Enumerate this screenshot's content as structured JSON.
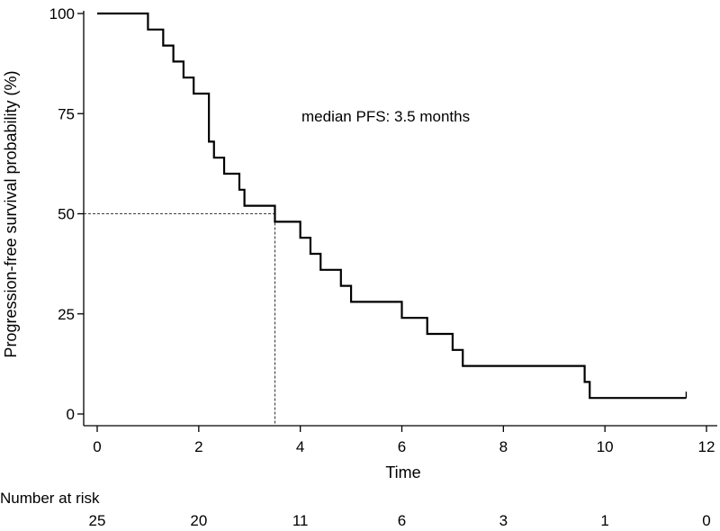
{
  "chart_data": {
    "type": "line",
    "subtype": "kaplan-meier-step",
    "xlabel": "Time",
    "ylabel": "Progression-free survival probability (%)",
    "xlim": [
      0,
      12
    ],
    "ylim": [
      0,
      100
    ],
    "xticks": [
      0,
      2,
      4,
      6,
      8,
      10,
      12
    ],
    "yticks": [
      0,
      25,
      50,
      75,
      100
    ],
    "xtick_labels": [
      "0",
      "2",
      "4",
      "6",
      "8",
      "10",
      "12"
    ],
    "ytick_labels": [
      "0",
      "25",
      "50",
      "75",
      "100"
    ],
    "grid": false,
    "annotation": "median PFS: 3.5 months",
    "median": {
      "x": 3.5,
      "y": 50
    },
    "series": [
      {
        "name": "PFS",
        "steps": [
          [
            0,
            100
          ],
          [
            1.0,
            96
          ],
          [
            1.3,
            92
          ],
          [
            1.5,
            88
          ],
          [
            1.7,
            84
          ],
          [
            1.9,
            80
          ],
          [
            2.2,
            68
          ],
          [
            2.3,
            64
          ],
          [
            2.5,
            60
          ],
          [
            2.8,
            56
          ],
          [
            2.9,
            52
          ],
          [
            3.5,
            48
          ],
          [
            4.0,
            44
          ],
          [
            4.2,
            40
          ],
          [
            4.4,
            36
          ],
          [
            4.8,
            32
          ],
          [
            5.0,
            28
          ],
          [
            6.0,
            24
          ],
          [
            6.5,
            20
          ],
          [
            7.0,
            16
          ],
          [
            7.2,
            12
          ],
          [
            9.6,
            8
          ],
          [
            9.7,
            4
          ]
        ],
        "end_x": 11.6
      }
    ],
    "risk_table": {
      "title": "Number at risk",
      "times": [
        0,
        2,
        4,
        6,
        8,
        10,
        12
      ],
      "counts": [
        "25",
        "20",
        "11",
        "6",
        "3",
        "1",
        "0"
      ]
    }
  }
}
